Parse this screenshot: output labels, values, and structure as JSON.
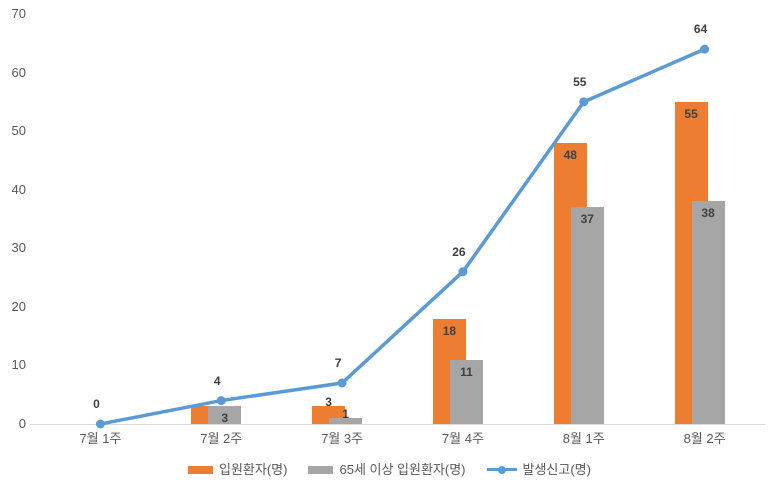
{
  "chart_data": {
    "type": "combo-bar-line",
    "title": "",
    "categories": [
      "7월 1주",
      "7월 2주",
      "7월 3주",
      "7월 4주",
      "8월 1주",
      "8월 2주"
    ],
    "ylim": [
      0,
      70
    ],
    "yticks": [
      0,
      10,
      20,
      30,
      40,
      50,
      60,
      70
    ],
    "grid": false,
    "legend_position": "bottom",
    "series": [
      {
        "key": "inpatients",
        "name": "입원환자(명)",
        "chart_type": "bar",
        "color": "#ED7D31",
        "values": [
          0,
          3,
          3,
          18,
          48,
          55
        ],
        "data_labels": [
          "",
          "",
          "3",
          "18",
          "48",
          "55"
        ],
        "label_placement": [
          "none",
          "none",
          "outside",
          "inside",
          "inside",
          "inside"
        ]
      },
      {
        "key": "inpatients-65plus",
        "name": "65세 이상 입원환자(명)",
        "chart_type": "bar",
        "color": "#A6A6A6",
        "values": [
          0,
          3,
          1,
          11,
          37,
          38
        ],
        "data_labels": [
          "",
          "3",
          "1",
          "11",
          "37",
          "38"
        ],
        "label_placement": [
          "none",
          "inside",
          "outside",
          "inside",
          "inside",
          "inside"
        ]
      },
      {
        "key": "reports",
        "name": "발생신고(명)",
        "chart_type": "line",
        "color": "#5B9BD5",
        "values": [
          0,
          4,
          7,
          26,
          55,
          64
        ],
        "data_labels": [
          "0",
          "4",
          "7",
          "26",
          "55",
          "64"
        ]
      }
    ],
    "colors": {
      "axis_line": "#D9D9D9",
      "tick_label": "#595959",
      "data_label": "#404040",
      "background": "#FFFFFF"
    }
  }
}
